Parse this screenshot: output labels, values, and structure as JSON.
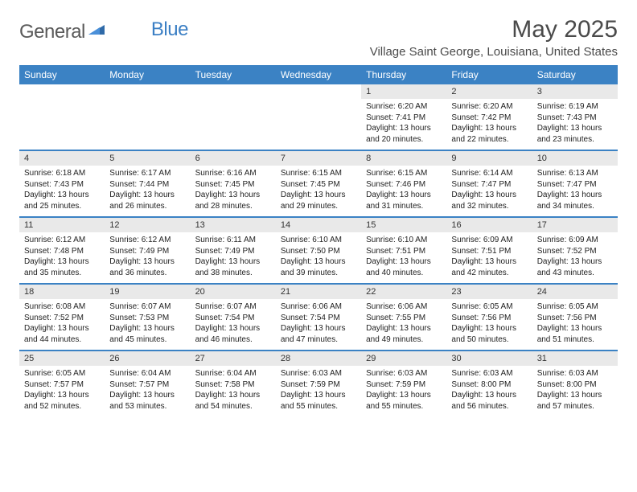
{
  "brand": {
    "name1": "General",
    "name2": "Blue"
  },
  "title": "May 2025",
  "location": "Village Saint George, Louisiana, United States",
  "colors": {
    "header_bg": "#3b82c4",
    "header_text": "#ffffff",
    "date_bg": "#e9e9e9",
    "text": "#222222",
    "logo_gray": "#5a5a5a",
    "logo_blue": "#3b7fc4"
  },
  "dayNames": [
    "Sunday",
    "Monday",
    "Tuesday",
    "Wednesday",
    "Thursday",
    "Friday",
    "Saturday"
  ],
  "weeks": [
    [
      null,
      null,
      null,
      null,
      {
        "d": "1",
        "sr": "6:20 AM",
        "ss": "7:41 PM",
        "dl": "13 hours and 20 minutes."
      },
      {
        "d": "2",
        "sr": "6:20 AM",
        "ss": "7:42 PM",
        "dl": "13 hours and 22 minutes."
      },
      {
        "d": "3",
        "sr": "6:19 AM",
        "ss": "7:43 PM",
        "dl": "13 hours and 23 minutes."
      }
    ],
    [
      {
        "d": "4",
        "sr": "6:18 AM",
        "ss": "7:43 PM",
        "dl": "13 hours and 25 minutes."
      },
      {
        "d": "5",
        "sr": "6:17 AM",
        "ss": "7:44 PM",
        "dl": "13 hours and 26 minutes."
      },
      {
        "d": "6",
        "sr": "6:16 AM",
        "ss": "7:45 PM",
        "dl": "13 hours and 28 minutes."
      },
      {
        "d": "7",
        "sr": "6:15 AM",
        "ss": "7:45 PM",
        "dl": "13 hours and 29 minutes."
      },
      {
        "d": "8",
        "sr": "6:15 AM",
        "ss": "7:46 PM",
        "dl": "13 hours and 31 minutes."
      },
      {
        "d": "9",
        "sr": "6:14 AM",
        "ss": "7:47 PM",
        "dl": "13 hours and 32 minutes."
      },
      {
        "d": "10",
        "sr": "6:13 AM",
        "ss": "7:47 PM",
        "dl": "13 hours and 34 minutes."
      }
    ],
    [
      {
        "d": "11",
        "sr": "6:12 AM",
        "ss": "7:48 PM",
        "dl": "13 hours and 35 minutes."
      },
      {
        "d": "12",
        "sr": "6:12 AM",
        "ss": "7:49 PM",
        "dl": "13 hours and 36 minutes."
      },
      {
        "d": "13",
        "sr": "6:11 AM",
        "ss": "7:49 PM",
        "dl": "13 hours and 38 minutes."
      },
      {
        "d": "14",
        "sr": "6:10 AM",
        "ss": "7:50 PM",
        "dl": "13 hours and 39 minutes."
      },
      {
        "d": "15",
        "sr": "6:10 AM",
        "ss": "7:51 PM",
        "dl": "13 hours and 40 minutes."
      },
      {
        "d": "16",
        "sr": "6:09 AM",
        "ss": "7:51 PM",
        "dl": "13 hours and 42 minutes."
      },
      {
        "d": "17",
        "sr": "6:09 AM",
        "ss": "7:52 PM",
        "dl": "13 hours and 43 minutes."
      }
    ],
    [
      {
        "d": "18",
        "sr": "6:08 AM",
        "ss": "7:52 PM",
        "dl": "13 hours and 44 minutes."
      },
      {
        "d": "19",
        "sr": "6:07 AM",
        "ss": "7:53 PM",
        "dl": "13 hours and 45 minutes."
      },
      {
        "d": "20",
        "sr": "6:07 AM",
        "ss": "7:54 PM",
        "dl": "13 hours and 46 minutes."
      },
      {
        "d": "21",
        "sr": "6:06 AM",
        "ss": "7:54 PM",
        "dl": "13 hours and 47 minutes."
      },
      {
        "d": "22",
        "sr": "6:06 AM",
        "ss": "7:55 PM",
        "dl": "13 hours and 49 minutes."
      },
      {
        "d": "23",
        "sr": "6:05 AM",
        "ss": "7:56 PM",
        "dl": "13 hours and 50 minutes."
      },
      {
        "d": "24",
        "sr": "6:05 AM",
        "ss": "7:56 PM",
        "dl": "13 hours and 51 minutes."
      }
    ],
    [
      {
        "d": "25",
        "sr": "6:05 AM",
        "ss": "7:57 PM",
        "dl": "13 hours and 52 minutes."
      },
      {
        "d": "26",
        "sr": "6:04 AM",
        "ss": "7:57 PM",
        "dl": "13 hours and 53 minutes."
      },
      {
        "d": "27",
        "sr": "6:04 AM",
        "ss": "7:58 PM",
        "dl": "13 hours and 54 minutes."
      },
      {
        "d": "28",
        "sr": "6:03 AM",
        "ss": "7:59 PM",
        "dl": "13 hours and 55 minutes."
      },
      {
        "d": "29",
        "sr": "6:03 AM",
        "ss": "7:59 PM",
        "dl": "13 hours and 55 minutes."
      },
      {
        "d": "30",
        "sr": "6:03 AM",
        "ss": "8:00 PM",
        "dl": "13 hours and 56 minutes."
      },
      {
        "d": "31",
        "sr": "6:03 AM",
        "ss": "8:00 PM",
        "dl": "13 hours and 57 minutes."
      }
    ]
  ],
  "labels": {
    "sunrise": "Sunrise: ",
    "sunset": "Sunset: ",
    "daylight": "Daylight: "
  }
}
